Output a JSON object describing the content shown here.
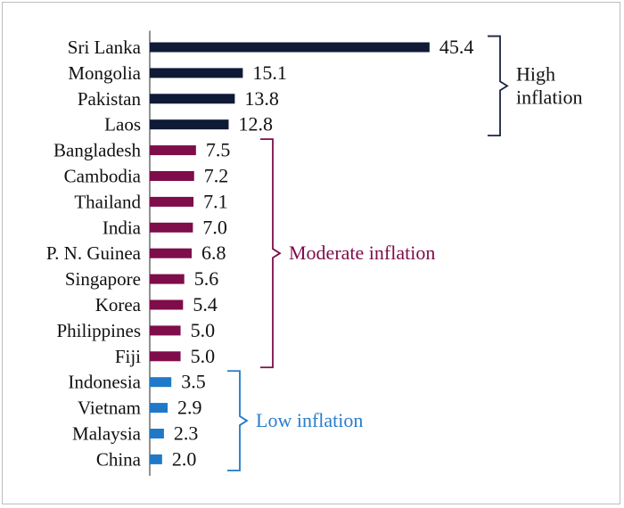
{
  "chart_data": {
    "type": "bar",
    "orientation": "horizontal",
    "title": "",
    "xlabel": "",
    "ylabel": "",
    "xlim": [
      0,
      46
    ],
    "grid": false,
    "categories": [
      "Sri Lanka",
      "Mongolia",
      "Pakistan",
      "Laos",
      "Bangladesh",
      "Cambodia",
      "Thailand",
      "India",
      "P. N. Guinea",
      "Singapore",
      "Korea",
      "Philippines",
      "Fiji",
      "Indonesia",
      "Vietnam",
      "Malaysia",
      "China"
    ],
    "values": [
      45.4,
      15.1,
      13.8,
      12.8,
      7.5,
      7.2,
      7.1,
      7.0,
      6.8,
      5.6,
      5.4,
      5.0,
      5.0,
      3.5,
      2.9,
      2.3,
      2.0
    ],
    "value_labels": [
      "45.4",
      "15.1",
      "13.8",
      "12.8",
      "7.5",
      "7.2",
      "7.1",
      "7.0",
      "6.8",
      "5.6",
      "5.4",
      "5.0",
      "5.0",
      "3.5",
      "2.9",
      "2.3",
      "2.0"
    ],
    "groups": [
      {
        "label_lines": [
          "High",
          "inflation"
        ],
        "first": 0,
        "last": 3,
        "color": "#0f1a36",
        "label_color": "#111111"
      },
      {
        "label_lines": [
          "Moderate inflation"
        ],
        "first": 4,
        "last": 12,
        "color": "#7e0d4a",
        "label_color": "#7e0d4a"
      },
      {
        "label_lines": [
          "Low inflation"
        ],
        "first": 13,
        "last": 16,
        "color": "#1f78c8",
        "label_color": "#2a7dc9"
      }
    ]
  }
}
